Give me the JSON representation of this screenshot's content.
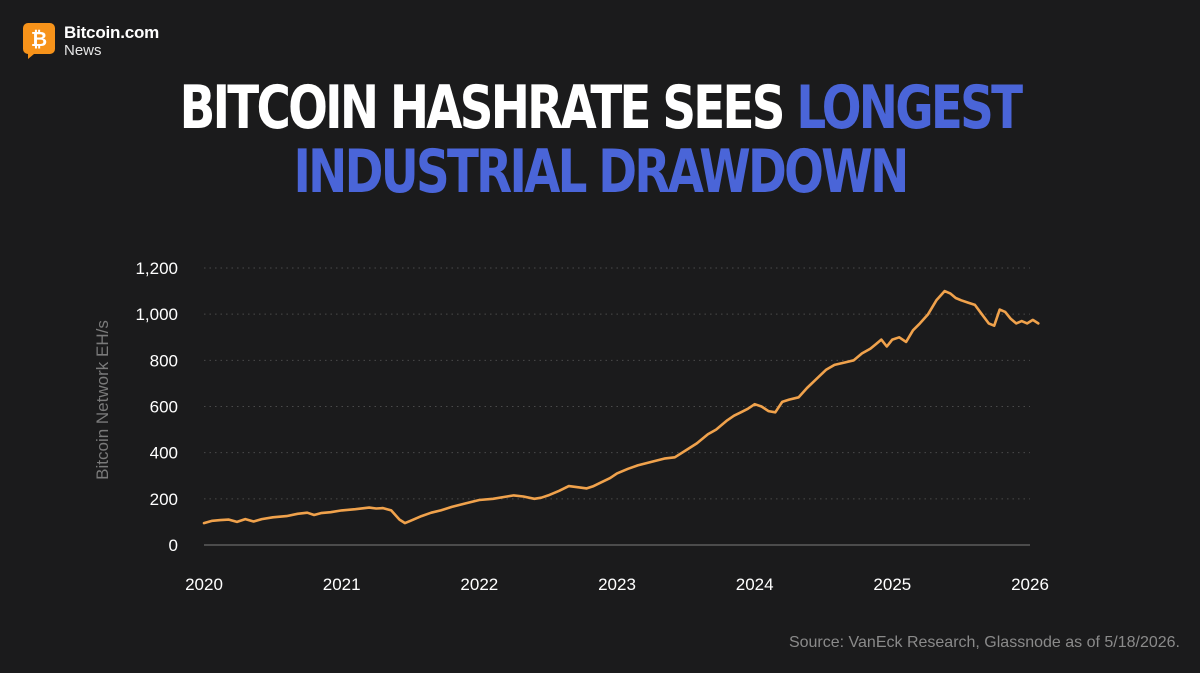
{
  "brand": {
    "name": "Bitcoin.com",
    "sub": "News",
    "color": "#f7931a"
  },
  "title": {
    "line1_white": "BITCOIN HASHRATE SEES ",
    "line1_blue": "LONGEST",
    "line2_blue": "INDUSTRIAL DRAWDOWN"
  },
  "colors": {
    "background": "#1b1b1c",
    "accent_blue": "#4a65d8",
    "line": "#f0a24c",
    "grid": "#4a4a4a"
  },
  "chart_data": {
    "type": "line",
    "title": "BITCOIN HASHRATE SEES LONGEST INDUSTRIAL DRAWDOWN",
    "ylabel": "Bitcoin Network EH/s",
    "xlabel": "",
    "ylim": [
      0,
      1200
    ],
    "xlim": [
      2020,
      2026
    ],
    "y_ticks": [
      {
        "value": 0,
        "label": "0"
      },
      {
        "value": 200,
        "label": "200"
      },
      {
        "value": 400,
        "label": "400"
      },
      {
        "value": 600,
        "label": "600"
      },
      {
        "value": 800,
        "label": "800"
      },
      {
        "value": 1000,
        "label": "1,000"
      },
      {
        "value": 1200,
        "label": "1,200"
      }
    ],
    "x_ticks": [
      {
        "value": 2020,
        "label": "2020"
      },
      {
        "value": 2021,
        "label": "2021"
      },
      {
        "value": 2022,
        "label": "2022"
      },
      {
        "value": 2023,
        "label": "2023"
      },
      {
        "value": 2024,
        "label": "2024"
      },
      {
        "value": 2025,
        "label": "2025"
      },
      {
        "value": 2026,
        "label": "2026"
      }
    ],
    "grid": "horizontal dotted",
    "legend": "none",
    "series": [
      {
        "color": "#f0a24c",
        "x": [
          2020.0,
          2020.06,
          2020.12,
          2020.18,
          2020.24,
          2020.3,
          2020.36,
          2020.42,
          2020.5,
          2020.6,
          2020.68,
          2020.75,
          2020.8,
          2020.85,
          2020.92,
          2021.0,
          2021.1,
          2021.2,
          2021.25,
          2021.3,
          2021.36,
          2021.42,
          2021.46,
          2021.5,
          2021.58,
          2021.65,
          2021.72,
          2021.8,
          2021.9,
          2022.0,
          2022.1,
          2022.2,
          2022.25,
          2022.32,
          2022.4,
          2022.45,
          2022.5,
          2022.58,
          2022.65,
          2022.72,
          2022.78,
          2022.83,
          2022.88,
          2022.95,
          2023.0,
          2023.08,
          2023.15,
          2023.25,
          2023.35,
          2023.42,
          2023.5,
          2023.58,
          2023.66,
          2023.72,
          2023.8,
          2023.85,
          2023.9,
          2023.95,
          2024.0,
          2024.05,
          2024.1,
          2024.15,
          2024.2,
          2024.25,
          2024.32,
          2024.38,
          2024.45,
          2024.52,
          2024.58,
          2024.65,
          2024.72,
          2024.78,
          2024.84,
          2024.88,
          2024.92,
          2024.96,
          2025.0,
          2025.05,
          2025.1,
          2025.15,
          2025.2,
          2025.26,
          2025.32,
          2025.38,
          2025.42,
          2025.46,
          2025.5,
          2025.55,
          2025.6,
          2025.65,
          2025.7,
          2025.74,
          2025.78,
          2025.82,
          2025.86,
          2025.9,
          2025.94,
          2025.98,
          2026.02,
          2026.06
        ],
        "y": [
          95,
          105,
          108,
          110,
          100,
          112,
          102,
          112,
          120,
          125,
          135,
          140,
          130,
          138,
          142,
          150,
          155,
          162,
          158,
          160,
          150,
          110,
          95,
          105,
          125,
          140,
          150,
          165,
          180,
          195,
          200,
          210,
          215,
          210,
          200,
          205,
          215,
          235,
          255,
          250,
          245,
          255,
          270,
          290,
          310,
          330,
          345,
          360,
          375,
          380,
          410,
          440,
          480,
          500,
          540,
          560,
          575,
          590,
          610,
          600,
          580,
          575,
          620,
          630,
          640,
          680,
          720,
          760,
          780,
          790,
          800,
          830,
          850,
          870,
          890,
          860,
          890,
          900,
          880,
          930,
          960,
          1000,
          1060,
          1100,
          1090,
          1070,
          1060,
          1050,
          1040,
          1000,
          960,
          950,
          1020,
          1010,
          980,
          960,
          970,
          960,
          975,
          960
        ]
      }
    ]
  },
  "source": "Source: VanEck Research, Glassnode as of 5/18/2026."
}
